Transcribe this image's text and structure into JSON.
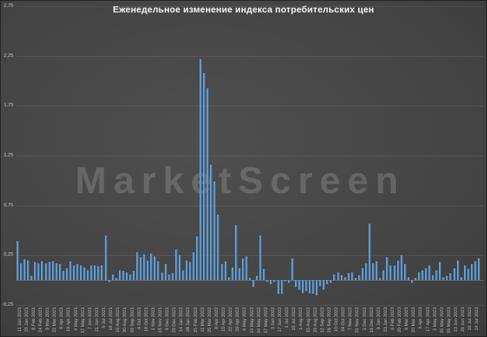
{
  "title": "Еженедельное изменение индекса потребительских цен",
  "watermark": "MarketScreen",
  "colors": {
    "background_center": "#4f4f4f",
    "background_edge": "#2c2c2c",
    "title": "#f4f4f4",
    "axis_label": "#c6c6c6",
    "bar": "#5b9bd5",
    "bar_light": "#8cbae5",
    "bar_dark": "#33689f",
    "gridline": "rgba(255,255,255,0.10)",
    "zero_line": "rgba(255,255,255,0.26)",
    "watermark": "rgba(205,205,205,0.22)"
  },
  "chart_data": {
    "type": "bar",
    "title": "Еженедельное изменение индекса потребительских цен",
    "xlabel": "",
    "ylabel": "",
    "ylim": [
      -0.25,
      2.75
    ],
    "grid": "horizontal",
    "legend": "none",
    "y_ticks": [
      "2,75",
      "2,25",
      "1,75",
      "1,25",
      "0,75",
      "0,25",
      "-0,25"
    ],
    "y_tick_values": [
      2.75,
      2.25,
      1.75,
      1.25,
      0.75,
      0.25,
      -0.25
    ],
    "x_labels": [
      "11 Jan 2021",
      "25 Jan 2021",
      "8 Feb 2021",
      "24 Feb 2021",
      "9 Mar 2021",
      "22 Mar 2021",
      "5 Apr 2021",
      "19 Apr 2021",
      "4 May 2021",
      "17 May 2021",
      "7 Jun 2021",
      "21 Jun 2021",
      "5 Jul 2021",
      "19 Jul 2021",
      "16 Aug 2021",
      "30 Aug 2021",
      "20 Sep 2021",
      "4 Oct 2021",
      "18 Oct 2021",
      "1 Nov 2021",
      "15 Nov 2021",
      "6 Dec 2021",
      "20 Dec 2021",
      "14 Jan 2022",
      "28 Jan 2022",
      "25 Feb 2022",
      "11 Mar 2022",
      "25 Mar 2022",
      "8 Apr 2022",
      "15 Apr 2022",
      "22 Apr 2022",
      "29 Apr 2022",
      "6 May 2022",
      "13 May 2022",
      "24 May 2022",
      "27 May 2022",
      "3 Jun 2022",
      "17 Jun 2022",
      "1 Jul 2022",
      "15 Jul 2022",
      "1 Aug 2022",
      "15 Aug 2022",
      "29 Aug 2022",
      "12 Sep 2022",
      "26 Sep 2022",
      "10 Oct 2022",
      "24 Oct 2022",
      "7 Nov 2022",
      "21 Nov 2022",
      "5 Dec 2022",
      "19 Dec 2022",
      "9 Jan 2023",
      "23 Jan 2023",
      "6 Feb 2023",
      "20 Feb 2023",
      "6 Mar 2023",
      "20 Mar 2023",
      "3 Apr 2023",
      "17 Apr 2023",
      "2 May 2023",
      "15 May 2023",
      "29 May 2023",
      "13 Jun 2023",
      "26 Jun 2023",
      "10 Jul 2023",
      "24 Jul 2023"
    ],
    "values": [
      0.39,
      0.17,
      0.21,
      0.2,
      0.04,
      0.18,
      0.17,
      0.19,
      0.17,
      0.18,
      0.19,
      0.17,
      0.16,
      0.09,
      0.12,
      0.19,
      0.15,
      0.16,
      0.15,
      0.13,
      0.1,
      0.15,
      0.15,
      0.14,
      0.15,
      0.45,
      -0.02,
      0.06,
      0.02,
      0.1,
      0.09,
      0.08,
      0.06,
      0.09,
      0.28,
      0.23,
      0.26,
      0.2,
      0.27,
      0.24,
      0.19,
      0.08,
      0.16,
      0.06,
      0.07,
      0.31,
      0.25,
      0.1,
      0.2,
      0.18,
      0.28,
      0.44,
      2.22,
      2.08,
      1.93,
      1.16,
      0.99,
      0.66,
      0.16,
      0.19,
      0.03,
      0.13,
      0.55,
      0.12,
      0.22,
      0.24,
      0.02,
      -0.07,
      0.04,
      0.45,
      0.11,
      -0.02,
      -0.04,
      -0.02,
      -0.14,
      -0.14,
      -0.01,
      -0.03,
      0.22,
      -0.07,
      -0.1,
      -0.13,
      -0.11,
      -0.13,
      -0.14,
      -0.15,
      -0.06,
      -0.1,
      -0.04,
      -0.03,
      0.06,
      0.08,
      0.05,
      0.03,
      0.07,
      0.08,
      0.02,
      0.05,
      0.12,
      0.17,
      0.57,
      0.17,
      0.19,
      0.02,
      0.1,
      0.23,
      0.15,
      0.15,
      0.2,
      0.25,
      0.16,
      0.03,
      -0.03,
      0.02,
      0.08,
      0.1,
      0.12,
      0.15,
      0.05,
      0.1,
      0.18,
      0.03,
      0.04,
      0.07,
      0.12,
      0.2,
      0.03,
      0.15,
      0.11,
      0.16,
      0.19,
      0.22
    ]
  }
}
